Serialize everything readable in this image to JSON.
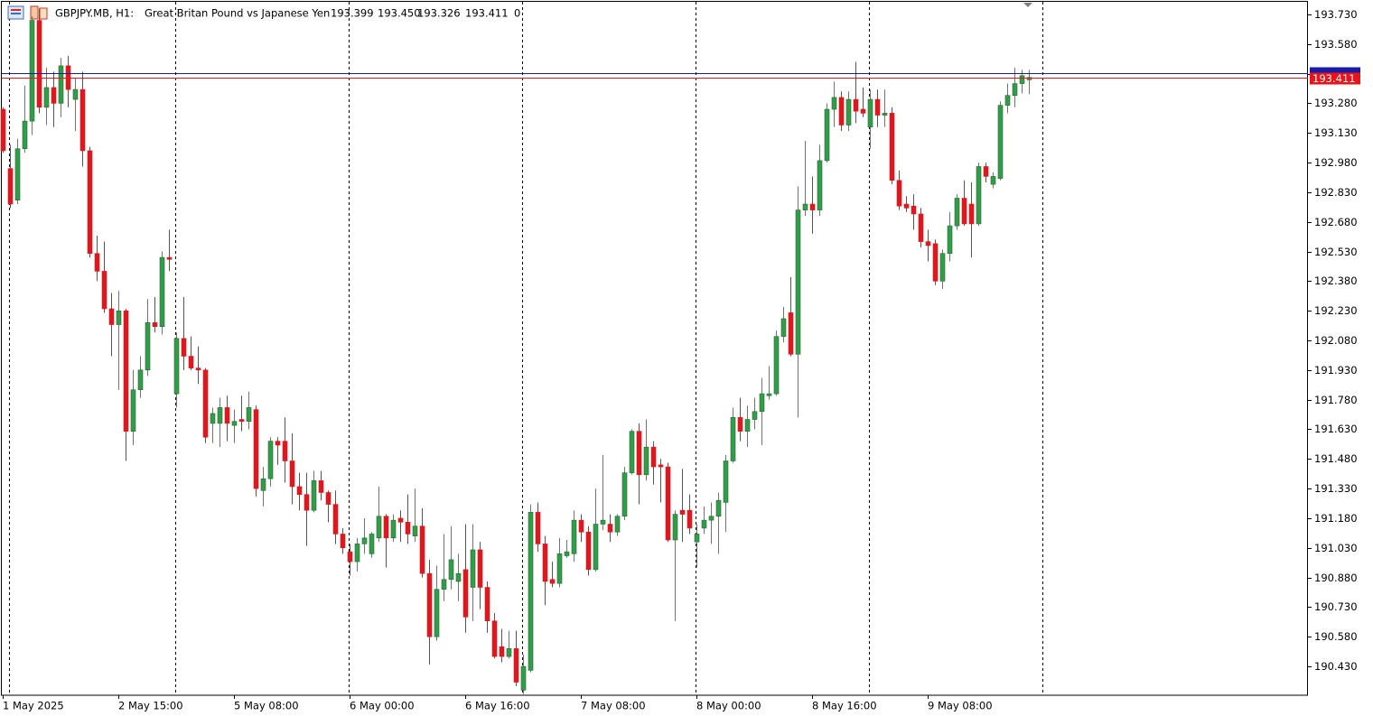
{
  "header": {
    "symbol": "GBPJPY.MB, H1:",
    "description": "Great Britan Pound vs Japanese Yen",
    "quote": [
      "193.399",
      "193.450",
      "193.326",
      "193.411"
    ],
    "volume": "0"
  },
  "chart_data": {
    "type": "candlestick",
    "categories": [
      "1 May 2025",
      null,
      null,
      null,
      null,
      null,
      null,
      null,
      null,
      null,
      null,
      null,
      null,
      null,
      null,
      null,
      "2 May 15:00",
      null,
      null,
      null,
      null,
      null,
      null,
      null,
      null,
      null,
      null,
      null,
      null,
      null,
      null,
      null,
      "5 May 08:00",
      null,
      null,
      null,
      null,
      null,
      null,
      null,
      null,
      null,
      null,
      null,
      null,
      null,
      null,
      null,
      "6 May 00:00",
      null,
      null,
      null,
      null,
      null,
      null,
      null,
      null,
      null,
      null,
      null,
      null,
      null,
      null,
      null,
      "6 May 16:00",
      null,
      null,
      null,
      null,
      null,
      null,
      null,
      null,
      null,
      null,
      null,
      null,
      null,
      null,
      null,
      "7 May 08:00",
      null,
      null,
      null,
      null,
      null,
      null,
      null,
      null,
      null,
      null,
      null,
      null,
      null,
      null,
      null,
      "8 May 00:00",
      null,
      null,
      null,
      null,
      null,
      null,
      null,
      null,
      null,
      null,
      null,
      null,
      null,
      null,
      null,
      "8 May 16:00",
      null,
      null,
      null,
      null,
      null,
      null,
      null,
      null,
      null,
      null,
      null,
      null,
      null,
      null,
      null,
      "9 May 08:00",
      null,
      null,
      null,
      null,
      null,
      null,
      null,
      null,
      null,
      null,
      null,
      null,
      null,
      null
    ],
    "open": [
      193.25,
      192.95,
      192.79,
      193.05,
      193.19,
      193.7,
      193.26,
      193.36,
      193.28,
      193.47,
      193.3,
      193.35,
      193.04,
      192.52,
      192.43,
      192.24,
      192.16,
      192.23,
      191.62,
      191.83,
      191.93,
      192.17,
      192.15,
      192.5,
      191.81,
      192.09,
      192.0,
      191.94,
      191.93,
      191.66,
      191.66,
      191.74,
      191.65,
      191.68,
      191.67,
      191.73,
      191.32,
      191.38,
      191.57,
      191.57,
      191.47,
      191.34,
      191.3,
      191.22,
      191.37,
      191.31,
      191.25,
      191.1,
      191.01,
      190.96,
      191.05,
      191.0,
      191.08,
      191.19,
      191.08,
      191.18,
      191.16,
      191.09,
      191.14,
      190.9,
      190.58,
      190.82,
      190.87,
      190.86,
      190.92,
      190.83,
      191.02,
      190.83,
      190.66,
      190.53,
      190.48,
      190.52,
      190.31,
      190.41,
      191.21,
      191.05,
      190.87,
      190.85,
      190.99,
      191.0,
      191.17,
      191.11,
      190.92,
      191.15,
      191.15,
      191.11,
      191.19,
      191.41,
      191.62,
      191.4,
      191.54,
      191.45,
      191.44,
      191.07,
      191.22,
      191.22,
      191.06,
      191.13,
      191.17,
      191.19,
      191.26,
      191.47,
      191.69,
      191.62,
      191.68,
      191.72,
      191.8,
      191.81,
      192.1,
      192.22,
      192.01,
      192.74,
      192.77,
      192.74,
      192.99,
      193.25,
      193.31,
      193.17,
      193.3,
      193.25,
      193.16,
      193.3,
      193.22,
      193.23,
      192.89,
      192.77,
      192.76,
      192.72,
      192.58,
      192.57,
      192.38,
      192.52,
      192.66,
      192.8,
      192.77,
      192.67,
      192.96,
      192.87,
      192.9,
      193.27,
      193.32,
      193.38,
      193.399
    ],
    "high": [
      193.26,
      193.07,
      193.1,
      193.37,
      193.72,
      193.76,
      193.46,
      193.44,
      193.51,
      193.52,
      193.41,
      193.44,
      193.06,
      192.61,
      192.58,
      192.32,
      192.33,
      192.24,
      191.93,
      192.0,
      192.29,
      192.3,
      192.53,
      192.64,
      192.12,
      192.3,
      192.1,
      192.05,
      191.94,
      191.74,
      191.79,
      191.8,
      191.73,
      191.8,
      191.82,
      191.75,
      191.44,
      191.59,
      191.59,
      191.69,
      191.61,
      191.41,
      191.41,
      191.42,
      191.42,
      191.32,
      191.32,
      191.13,
      191.05,
      191.08,
      191.18,
      191.11,
      191.34,
      191.2,
      191.2,
      191.22,
      191.3,
      191.33,
      191.23,
      190.97,
      190.94,
      191.1,
      191.14,
      191.0,
      191.15,
      191.15,
      191.06,
      190.86,
      190.7,
      190.62,
      190.61,
      190.61,
      190.49,
      191.25,
      191.26,
      191.09,
      190.96,
      191.08,
      191.07,
      191.22,
      191.2,
      191.14,
      191.33,
      191.5,
      191.2,
      191.2,
      191.44,
      191.63,
      191.66,
      191.68,
      191.57,
      191.48,
      191.46,
      191.22,
      191.43,
      191.3,
      191.15,
      191.24,
      191.26,
      191.31,
      191.5,
      191.74,
      191.79,
      191.75,
      191.79,
      191.89,
      191.95,
      192.13,
      192.25,
      192.4,
      192.86,
      193.09,
      192.91,
      193.07,
      193.28,
      193.39,
      193.34,
      193.34,
      193.49,
      193.36,
      193.35,
      193.35,
      193.35,
      193.26,
      192.94,
      192.81,
      192.82,
      192.75,
      192.64,
      192.59,
      192.54,
      192.73,
      192.82,
      192.89,
      192.88,
      192.98,
      192.98,
      192.93,
      193.29,
      193.38,
      193.46,
      193.45,
      193.45
    ],
    "low": [
      193.03,
      192.75,
      192.77,
      193.03,
      193.12,
      193.23,
      193.17,
      193.16,
      193.21,
      193.26,
      193.14,
      192.96,
      192.5,
      192.38,
      192.22,
      192.0,
      191.83,
      191.47,
      191.55,
      191.79,
      191.9,
      192.12,
      192.11,
      192.43,
      191.74,
      191.93,
      191.93,
      191.86,
      191.56,
      191.56,
      191.54,
      191.57,
      191.56,
      191.62,
      191.63,
      191.29,
      191.24,
      191.34,
      191.45,
      191.36,
      191.25,
      191.22,
      191.04,
      191.21,
      191.27,
      191.16,
      191.05,
      191.0,
      190.89,
      190.91,
      191.0,
      190.98,
      191.06,
      190.93,
      191.06,
      191.06,
      191.05,
      191.06,
      190.88,
      190.44,
      190.56,
      190.76,
      190.82,
      190.76,
      190.6,
      190.66,
      190.72,
      190.6,
      190.47,
      190.45,
      190.47,
      190.33,
      190.29,
      190.4,
      191.01,
      190.74,
      190.83,
      190.83,
      190.98,
      190.96,
      191.06,
      190.89,
      190.91,
      191.12,
      191.06,
      191.09,
      191.17,
      191.4,
      191.25,
      191.37,
      191.35,
      191.26,
      191.06,
      190.66,
      191.06,
      191.1,
      190.93,
      191.1,
      191.05,
      191.0,
      191.11,
      191.46,
      191.57,
      191.54,
      191.63,
      191.55,
      191.78,
      191.8,
      192.07,
      192.0,
      191.69,
      192.71,
      192.62,
      192.71,
      192.98,
      193.16,
      193.14,
      193.14,
      193.18,
      193.21,
      193.05,
      193.16,
      193.16,
      192.87,
      192.74,
      192.73,
      192.64,
      192.55,
      192.48,
      192.36,
      192.34,
      192.48,
      192.64,
      192.66,
      192.5,
      192.66,
      192.88,
      192.85,
      192.89,
      193.23,
      193.26,
      193.33,
      193.326
    ],
    "close": [
      193.04,
      192.77,
      193.05,
      193.19,
      193.7,
      193.26,
      193.36,
      193.28,
      193.47,
      193.35,
      193.35,
      193.04,
      192.52,
      192.43,
      192.24,
      192.16,
      192.23,
      191.62,
      191.83,
      191.93,
      192.17,
      192.15,
      192.5,
      192.49,
      192.09,
      192.0,
      191.94,
      191.93,
      191.59,
      191.71,
      191.74,
      191.66,
      191.67,
      191.67,
      191.74,
      191.33,
      191.38,
      191.57,
      191.55,
      191.47,
      191.34,
      191.3,
      191.22,
      191.37,
      191.31,
      191.25,
      191.1,
      191.03,
      190.96,
      191.05,
      191.08,
      191.1,
      191.19,
      191.08,
      191.17,
      191.16,
      191.1,
      191.14,
      190.9,
      190.58,
      190.82,
      190.87,
      190.97,
      190.9,
      190.68,
      191.02,
      190.83,
      190.66,
      190.48,
      190.48,
      190.52,
      190.35,
      190.43,
      191.21,
      191.05,
      190.86,
      190.85,
      191.0,
      191.01,
      191.17,
      191.11,
      190.92,
      191.15,
      191.17,
      191.11,
      191.19,
      191.41,
      191.62,
      191.4,
      191.54,
      191.44,
      191.44,
      191.07,
      191.2,
      191.2,
      191.13,
      191.1,
      191.17,
      191.19,
      191.27,
      191.47,
      191.69,
      191.62,
      191.68,
      191.72,
      191.81,
      191.81,
      192.1,
      192.19,
      192.01,
      192.74,
      192.77,
      192.74,
      192.99,
      193.25,
      193.31,
      193.17,
      193.3,
      193.24,
      193.23,
      193.3,
      193.22,
      193.23,
      192.89,
      192.76,
      192.75,
      192.72,
      192.58,
      192.56,
      192.38,
      192.52,
      192.66,
      192.8,
      192.67,
      192.67,
      192.96,
      192.91,
      192.91,
      193.27,
      193.32,
      193.38,
      193.42,
      193.411
    ],
    "up_color": "#2e9e47",
    "down_color": "#e8141c",
    "ylim": [
      190.284,
      193.803
    ],
    "yticks": [
      {
        "value": 193.73,
        "label": "193.730"
      },
      {
        "value": 193.58,
        "label": "193.580"
      },
      {
        "value": 193.43,
        "label": "193.430"
      },
      {
        "value": 193.28,
        "label": "193.280"
      },
      {
        "value": 193.13,
        "label": "193.130"
      },
      {
        "value": 192.98,
        "label": "192.980"
      },
      {
        "value": 192.83,
        "label": "192.830"
      },
      {
        "value": 192.68,
        "label": "192.680"
      },
      {
        "value": 192.53,
        "label": "192.530"
      },
      {
        "value": 192.38,
        "label": "192.380"
      },
      {
        "value": 192.23,
        "label": "192.230"
      },
      {
        "value": 192.08,
        "label": "192.080"
      },
      {
        "value": 191.93,
        "label": "191.930"
      },
      {
        "value": 191.78,
        "label": "191.780"
      },
      {
        "value": 191.63,
        "label": "191.630"
      },
      {
        "value": 191.48,
        "label": "191.480"
      },
      {
        "value": 191.33,
        "label": "191.330"
      },
      {
        "value": 191.18,
        "label": "191.180"
      },
      {
        "value": 191.03,
        "label": "191.030"
      },
      {
        "value": 190.88,
        "label": "190.880"
      },
      {
        "value": 190.73,
        "label": "190.730"
      },
      {
        "value": 190.58,
        "label": "190.580"
      },
      {
        "value": 190.43,
        "label": "190.430"
      }
    ],
    "bid": 193.411,
    "bid_color": "#e8141c",
    "ask": 193.433,
    "ask_color": "#1a1aa6"
  }
}
